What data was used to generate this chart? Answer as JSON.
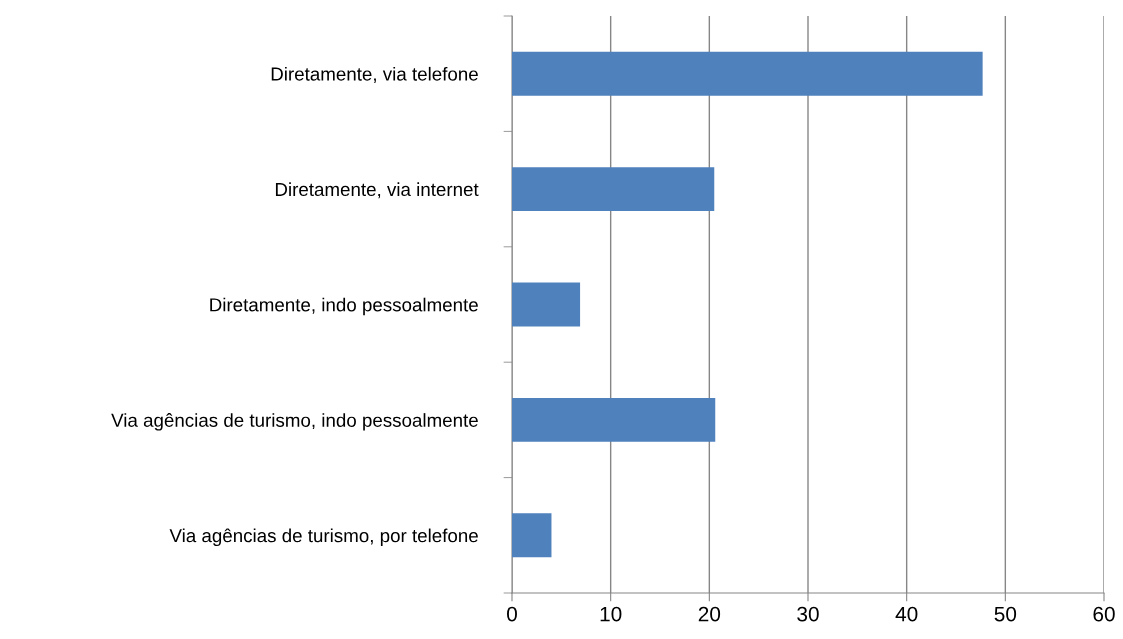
{
  "chart_data": {
    "type": "bar",
    "orientation": "horizontal",
    "categories": [
      "Diretamente, via telefone",
      "Diretamente, via internet",
      "Diretamente, indo pessoalmente",
      "Via agências de turismo, indo pessoalmente",
      "Via agências de turismo, por telefone"
    ],
    "values": [
      47.7,
      20.5,
      6.9,
      20.6,
      4.0
    ],
    "color": "#4f81bd",
    "xlim": [
      0,
      60
    ],
    "xticks": [
      0,
      10,
      20,
      30,
      40,
      50,
      60
    ],
    "grid": "x"
  }
}
